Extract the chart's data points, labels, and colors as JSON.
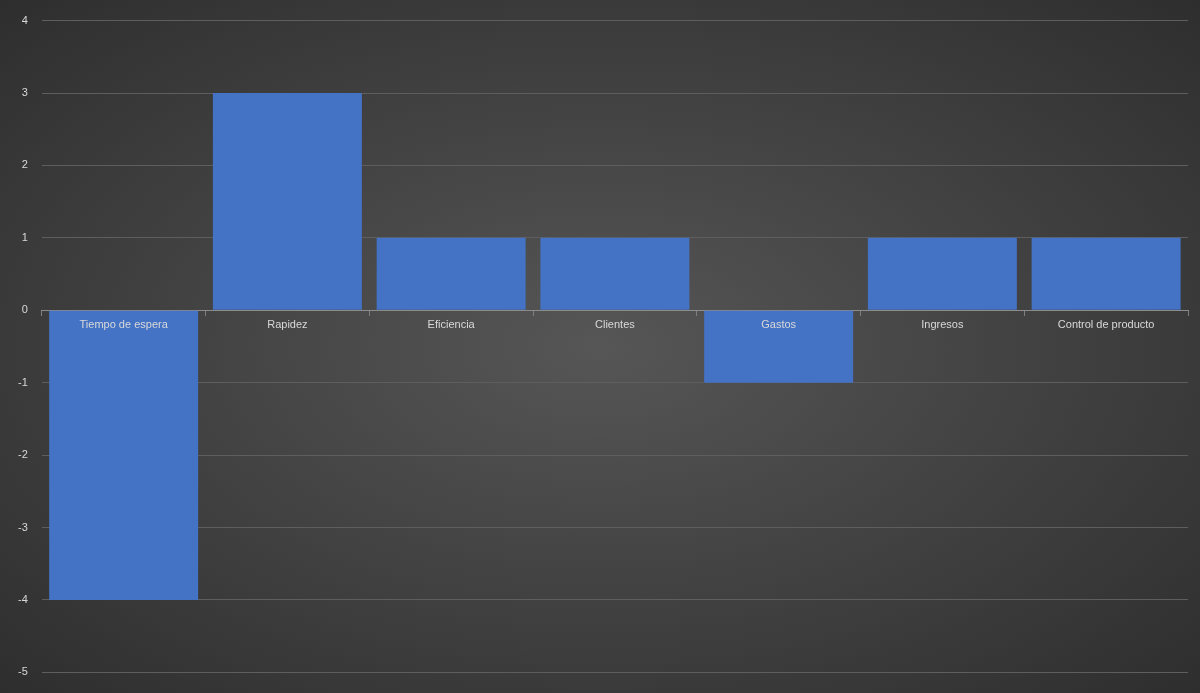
{
  "chart_data": {
    "type": "bar",
    "categories": [
      "Tiempo de espera",
      "Rapidez",
      "Eficiencia",
      "Clientes",
      "Gastos",
      "Ingresos",
      "Control de producto"
    ],
    "values": [
      -4,
      3,
      1,
      1,
      -1,
      1,
      1
    ],
    "color": "#4472c4",
    "ylim": [
      -5,
      4
    ],
    "yticks": [
      -5,
      -4,
      -3,
      -2,
      -1,
      0,
      1,
      2,
      3,
      4
    ],
    "grid": "y",
    "legend": false
  }
}
